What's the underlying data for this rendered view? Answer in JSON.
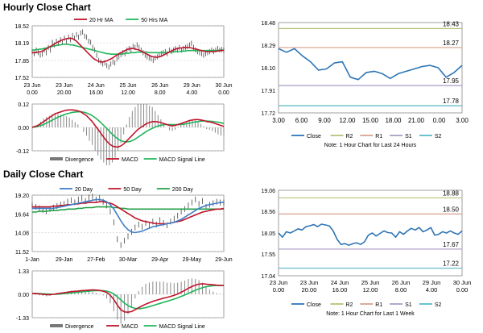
{
  "sections": {
    "hourly_title": "Hourly Close Chart",
    "daily_title": "Daily Close Chart"
  },
  "colors": {
    "ma20": "#c0142b",
    "ma50": "#20b45a",
    "ma200": "#22a047",
    "ma20_day": "#3f7fc9",
    "macd": "#c0142b",
    "signal": "#20b45a",
    "divergence": "#888888",
    "close": "#2e75b6",
    "R2": "#b8c27a",
    "R1": "#d8a08c",
    "S1": "#a89bc4",
    "S2": "#58b7c9",
    "grid": "#c8c8c8"
  },
  "chart_data": [
    {
      "id": "hourly-price",
      "type": "line",
      "legend": [
        "20 Hr MA",
        "50 Hrs MA"
      ],
      "y_ticks": [
        "18.52",
        "18.19",
        "17.85",
        "17.52"
      ],
      "ylim": [
        17.52,
        18.52
      ],
      "x_ticks": [
        [
          "23 Jun",
          "0.00"
        ],
        [
          "23 Jun",
          "20.00"
        ],
        [
          "24 Jun",
          "16.00"
        ],
        [
          "25 Jun",
          "12.00"
        ],
        [
          "26 Jun",
          "8.00"
        ],
        [
          "29 Jun",
          "4.00"
        ],
        [
          "30 Jun",
          "0.00"
        ]
      ],
      "n": 96,
      "price": [
        18.02,
        17.98,
        18.05,
        18.0,
        17.95,
        17.97,
        18.05,
        18.0,
        18.1,
        18.05,
        18.2,
        18.15,
        18.22,
        18.18,
        18.25,
        18.2,
        18.28,
        18.22,
        18.3,
        18.25,
        18.33,
        18.28,
        18.35,
        18.3,
        18.38,
        18.4,
        18.32,
        18.3,
        18.22,
        18.2,
        18.1,
        18.05,
        17.95,
        17.85,
        17.82,
        17.78,
        17.8,
        17.75,
        17.72,
        17.78,
        17.82,
        17.8,
        17.88,
        17.92,
        17.96,
        18.0,
        17.98,
        18.05,
        18.08,
        18.06,
        18.12,
        18.1,
        18.15,
        18.1,
        18.05,
        18.0,
        17.95,
        17.92,
        17.9,
        17.88,
        17.85,
        17.9,
        17.92,
        17.95,
        17.98,
        18.0,
        18.02,
        17.98,
        18.05,
        18.02,
        18.05,
        18.08,
        18.05,
        18.1,
        18.05,
        18.08,
        18.1,
        18.12,
        18.15,
        18.18,
        18.1,
        18.05,
        18.02,
        18.0,
        17.98,
        17.95,
        17.98,
        18.0,
        18.02,
        18.05,
        18.02,
        18.05,
        18.08,
        18.05,
        18.06,
        18.05
      ],
      "ma20": [
        18.0,
        18.0,
        18.0,
        18.01,
        18.02,
        18.03,
        18.05,
        18.07,
        18.1,
        18.12,
        18.14,
        18.17,
        18.19,
        18.21,
        18.23,
        18.25,
        18.26,
        18.27,
        18.28,
        18.28,
        18.27,
        18.25,
        18.22,
        18.18,
        18.14,
        18.1,
        18.06,
        18.02,
        17.98,
        17.94,
        17.9,
        17.87,
        17.85,
        17.83,
        17.82,
        17.82,
        17.83,
        17.84,
        17.86,
        17.88,
        17.9,
        17.93,
        17.95,
        17.98,
        18.0,
        18.02,
        18.04,
        18.06,
        18.07,
        18.08,
        18.08,
        18.07,
        18.06,
        18.05,
        18.03,
        18.01,
        17.99,
        17.97,
        17.95,
        17.93,
        17.92,
        17.91,
        17.91,
        17.92,
        17.93,
        17.95,
        17.97,
        17.99,
        18.01,
        18.03,
        18.05,
        18.07,
        18.08,
        18.09,
        18.09,
        18.1,
        18.1,
        18.1,
        18.1,
        18.09,
        18.08,
        18.07,
        18.06,
        18.05,
        18.04,
        18.03,
        18.02,
        18.02,
        18.02,
        18.02,
        18.02,
        18.03,
        18.03,
        18.04,
        18.04,
        18.05
      ],
      "ma50": [
        18.05,
        18.05,
        18.06,
        18.06,
        18.07,
        18.07,
        18.08,
        18.09,
        18.1,
        18.11,
        18.12,
        18.13,
        18.14,
        18.15,
        18.15,
        18.16,
        18.16,
        18.16,
        18.16,
        18.15,
        18.15,
        18.14,
        18.13,
        18.12,
        18.11,
        18.1,
        18.09,
        18.08,
        18.07,
        18.06,
        18.05,
        18.04,
        18.03,
        18.02,
        18.01,
        18.0,
        17.99,
        17.98,
        17.98,
        17.97,
        17.97,
        17.97,
        17.97,
        17.97,
        17.97,
        17.98,
        17.98,
        17.99,
        17.99,
        18.0,
        18.0,
        18.0,
        18.01,
        18.01,
        18.01,
        18.01,
        18.01,
        18.01,
        18.0,
        18.0,
        18.0,
        18.0,
        18.0,
        18.0,
        18.0,
        18.0,
        18.0,
        18.0,
        18.01,
        18.01,
        18.01,
        18.02,
        18.02,
        18.02,
        18.03,
        18.03,
        18.03,
        18.04,
        18.04,
        18.04,
        18.04,
        18.04,
        18.04,
        18.04,
        18.04,
        18.04,
        18.04,
        18.04,
        18.04,
        18.04,
        18.04,
        18.04,
        18.04,
        18.05,
        18.05,
        18.05
      ]
    },
    {
      "id": "hourly-macd",
      "type": "line",
      "legend": [
        "Divergence",
        "MACD",
        "MACD Signal Line"
      ],
      "y_ticks": [
        "0.12",
        "0.00",
        "-0.12"
      ],
      "ylim": [
        -0.12,
        0.12
      ],
      "macd": [
        0.0,
        0.005,
        0.01,
        0.02,
        0.03,
        0.04,
        0.05,
        0.06,
        0.07,
        0.075,
        0.08,
        0.085,
        0.088,
        0.09,
        0.09,
        0.088,
        0.085,
        0.08,
        0.07,
        0.06,
        0.045,
        0.03,
        0.01,
        -0.01,
        -0.03,
        -0.05,
        -0.07,
        -0.085,
        -0.095,
        -0.1,
        -0.1,
        -0.095,
        -0.085,
        -0.07,
        -0.055,
        -0.04,
        -0.025,
        -0.01,
        0.0,
        0.01,
        0.02,
        0.025,
        0.03,
        0.03,
        0.028,
        0.025,
        0.02,
        0.015,
        0.01,
        0.008,
        0.01,
        0.015,
        0.02,
        0.025,
        0.03,
        0.035,
        0.038,
        0.04,
        0.04,
        0.038,
        0.035,
        0.03,
        0.028,
        0.025,
        0.02,
        0.015,
        0.01,
        0.005
      ],
      "signal": [
        0.0,
        0.002,
        0.005,
        0.01,
        0.015,
        0.022,
        0.03,
        0.037,
        0.045,
        0.052,
        0.058,
        0.064,
        0.069,
        0.073,
        0.077,
        0.079,
        0.08,
        0.08,
        0.078,
        0.074,
        0.068,
        0.06,
        0.05,
        0.038,
        0.025,
        0.01,
        -0.005,
        -0.02,
        -0.035,
        -0.048,
        -0.06,
        -0.068,
        -0.073,
        -0.075,
        -0.073,
        -0.068,
        -0.06,
        -0.05,
        -0.04,
        -0.03,
        -0.02,
        -0.012,
        -0.005,
        0.002,
        0.007,
        0.011,
        0.014,
        0.015,
        0.015,
        0.014,
        0.014,
        0.014,
        0.015,
        0.017,
        0.019,
        0.022,
        0.025,
        0.028,
        0.03,
        0.032,
        0.033,
        0.033,
        0.032,
        0.031,
        0.029,
        0.027,
        0.024,
        0.02
      ]
    },
    {
      "id": "hourly-close",
      "type": "line",
      "y_ticks": [
        "18.48",
        "18.29",
        "18.10",
        "17.91",
        "17.72"
      ],
      "ylim": [
        17.72,
        18.48
      ],
      "x_ticks": [
        "3.00",
        "6.00",
        "9.00",
        "12.00",
        "15.00",
        "18.00",
        "21.00",
        "0.00",
        "3.00"
      ],
      "close": [
        18.26,
        18.23,
        18.26,
        18.2,
        18.15,
        18.08,
        18.09,
        18.14,
        18.15,
        18.02,
        18.0,
        18.06,
        18.07,
        18.05,
        18.01,
        18.05,
        18.07,
        18.09,
        18.11,
        18.12,
        18.1,
        18.02,
        18.06,
        18.12
      ],
      "levels": [
        {
          "name": "R2",
          "value": 18.43,
          "label": "18.43"
        },
        {
          "name": "R1",
          "value": 18.27,
          "label": "18.27"
        },
        {
          "name": "S1",
          "value": 17.95,
          "label": "17.95"
        },
        {
          "name": "S2",
          "value": 17.78,
          "label": "17.78"
        }
      ],
      "legend": [
        "Close",
        "R2",
        "R1",
        "S1",
        "S2"
      ],
      "note": "Note: 1 Hour Chart for Last 24 Hours"
    },
    {
      "id": "daily-price",
      "type": "line",
      "legend": [
        "20 Day",
        "50 Day",
        "200 Day"
      ],
      "y_ticks": [
        "19.20",
        "16.64",
        "14.08",
        "11.52"
      ],
      "ylim": [
        11.52,
        19.2
      ],
      "x_ticks": [
        "1-Jan",
        "29-Jan",
        "27-Feb",
        "30-Mar",
        "29-Apr",
        "29-May",
        "29-Jun"
      ],
      "price": [
        17.8,
        17.6,
        17.4,
        17.2,
        17.0,
        17.3,
        17.5,
        17.7,
        17.9,
        18.0,
        18.3,
        18.5,
        18.2,
        18.6,
        18.8,
        18.4,
        18.9,
        19.0,
        18.6,
        18.8,
        18.3,
        17.8,
        17.0,
        15.5,
        13.2,
        12.4,
        13.0,
        13.6,
        14.2,
        14.8,
        15.2,
        14.9,
        15.4,
        15.0,
        15.6,
        15.2,
        15.8,
        15.4,
        15.1,
        15.6,
        16.0,
        16.4,
        17.0,
        17.3,
        17.8,
        18.2,
        18.6,
        18.0,
        18.4,
        17.6,
        17.9,
        18.1,
        18.3,
        18.2,
        18.2
      ],
      "ma20": [
        17.4,
        17.4,
        17.4,
        17.4,
        17.4,
        17.4,
        17.4,
        17.5,
        17.6,
        17.7,
        17.8,
        17.9,
        18.0,
        18.1,
        18.2,
        18.3,
        18.4,
        18.5,
        18.6,
        18.6,
        18.5,
        18.3,
        17.9,
        17.3,
        16.5,
        15.7,
        15.0,
        14.5,
        14.2,
        14.1,
        14.2,
        14.3,
        14.5,
        14.7,
        14.9,
        15.0,
        15.1,
        15.2,
        15.3,
        15.4,
        15.5,
        15.7,
        15.9,
        16.2,
        16.5,
        16.8,
        17.1,
        17.4,
        17.6,
        17.8,
        17.9,
        18.0,
        18.1,
        18.2,
        18.2
      ],
      "ma50": [
        17.6,
        17.6,
        17.6,
        17.6,
        17.6,
        17.6,
        17.7,
        17.7,
        17.8,
        17.8,
        17.9,
        17.9,
        18.0,
        18.0,
        18.1,
        18.1,
        18.2,
        18.2,
        18.2,
        18.3,
        18.3,
        18.2,
        18.1,
        17.9,
        17.6,
        17.3,
        17.0,
        16.7,
        16.4,
        16.1,
        15.9,
        15.7,
        15.6,
        15.5,
        15.4,
        15.3,
        15.3,
        15.3,
        15.3,
        15.4,
        15.5,
        15.6,
        15.7,
        15.9,
        16.1,
        16.3,
        16.5,
        16.7,
        16.9,
        17.0,
        17.1,
        17.2,
        17.3,
        17.3,
        17.4
      ],
      "ma200": [
        16.9,
        16.9,
        17.0,
        17.0,
        17.0,
        17.1,
        17.1,
        17.1,
        17.2,
        17.2,
        17.3,
        17.3,
        17.3,
        17.4,
        17.4,
        17.5,
        17.5,
        17.5,
        17.6,
        17.6,
        17.6,
        17.6,
        17.6,
        17.5,
        17.5,
        17.4,
        17.4,
        17.3,
        17.3,
        17.3,
        17.3,
        17.3,
        17.3,
        17.3,
        17.3,
        17.3,
        17.3,
        17.3,
        17.3,
        17.3,
        17.3,
        17.3,
        17.3,
        17.3,
        17.3,
        17.3,
        17.3,
        17.3,
        17.3,
        17.3,
        17.3,
        17.3,
        17.3,
        17.3,
        17.3
      ]
    },
    {
      "id": "daily-macd",
      "type": "line",
      "legend": [
        "Divergence",
        "MACD",
        "MACD Signal Line"
      ],
      "y_ticks": [
        "1.33",
        "0.00",
        "-1.33"
      ],
      "ylim": [
        -1.33,
        1.33
      ],
      "macd": [
        0.05,
        0.04,
        0.02,
        0.0,
        -0.02,
        -0.02,
        0.0,
        0.03,
        0.06,
        0.09,
        0.12,
        0.15,
        0.17,
        0.19,
        0.21,
        0.22,
        0.24,
        0.25,
        0.24,
        0.22,
        0.18,
        0.1,
        -0.05,
        -0.3,
        -0.62,
        -0.88,
        -1.0,
        -1.02,
        -0.98,
        -0.88,
        -0.76,
        -0.66,
        -0.56,
        -0.48,
        -0.4,
        -0.34,
        -0.28,
        -0.22,
        -0.18,
        -0.12,
        -0.06,
        0.02,
        0.12,
        0.22,
        0.34,
        0.44,
        0.52,
        0.58,
        0.6,
        0.58,
        0.56,
        0.54,
        0.52,
        0.51,
        0.5
      ],
      "signal": [
        0.05,
        0.05,
        0.04,
        0.03,
        0.02,
        0.01,
        0.0,
        0.0,
        0.02,
        0.04,
        0.06,
        0.08,
        0.1,
        0.12,
        0.14,
        0.16,
        0.18,
        0.2,
        0.21,
        0.21,
        0.2,
        0.18,
        0.12,
        0.02,
        -0.14,
        -0.32,
        -0.5,
        -0.64,
        -0.74,
        -0.8,
        -0.82,
        -0.8,
        -0.76,
        -0.7,
        -0.64,
        -0.58,
        -0.52,
        -0.46,
        -0.4,
        -0.34,
        -0.27,
        -0.2,
        -0.12,
        -0.04,
        0.05,
        0.14,
        0.23,
        0.31,
        0.38,
        0.43,
        0.47,
        0.49,
        0.5,
        0.5,
        0.5
      ]
    },
    {
      "id": "daily-close",
      "type": "line",
      "y_ticks": [
        "19.06",
        "18.56",
        "18.05",
        "17.55",
        "17.04"
      ],
      "ylim": [
        17.04,
        19.06
      ],
      "x_ticks": [
        [
          "23 Jun",
          "0.00"
        ],
        [
          "23 Jun",
          "20.00"
        ],
        [
          "24 Jun",
          "16.00"
        ],
        [
          "25 Jun",
          "12.00"
        ],
        [
          "26 Jun",
          "8.00"
        ],
        [
          "29 Jun",
          "4.00"
        ],
        [
          "30 Jun",
          "0.00"
        ]
      ],
      "close": [
        18.05,
        17.95,
        18.08,
        18.05,
        18.1,
        18.15,
        18.12,
        18.2,
        18.22,
        18.25,
        18.2,
        18.26,
        18.24,
        18.22,
        18.1,
        17.9,
        17.78,
        17.8,
        17.76,
        17.8,
        17.82,
        17.78,
        17.84,
        18.0,
        18.05,
        17.98,
        18.04,
        18.1,
        18.06,
        18.05,
        17.95,
        18.08,
        18.02,
        18.1,
        18.16,
        18.12,
        18.18,
        18.08,
        18.12,
        18.18,
        18.0,
        18.02,
        18.08,
        18.05,
        18.1,
        18.05,
        18.02,
        18.1
      ],
      "levels": [
        {
          "name": "R2",
          "value": 18.88,
          "label": "18.88"
        },
        {
          "name": "R1",
          "value": 18.5,
          "label": "18.50"
        },
        {
          "name": "S1",
          "value": 17.67,
          "label": "17.67"
        },
        {
          "name": "S2",
          "value": 17.22,
          "label": "17.22"
        }
      ],
      "legend": [
        "Close",
        "R2",
        "R1",
        "S1",
        "S2"
      ],
      "note": "Note: 1 Hour Chart for Last 1 Week"
    }
  ]
}
